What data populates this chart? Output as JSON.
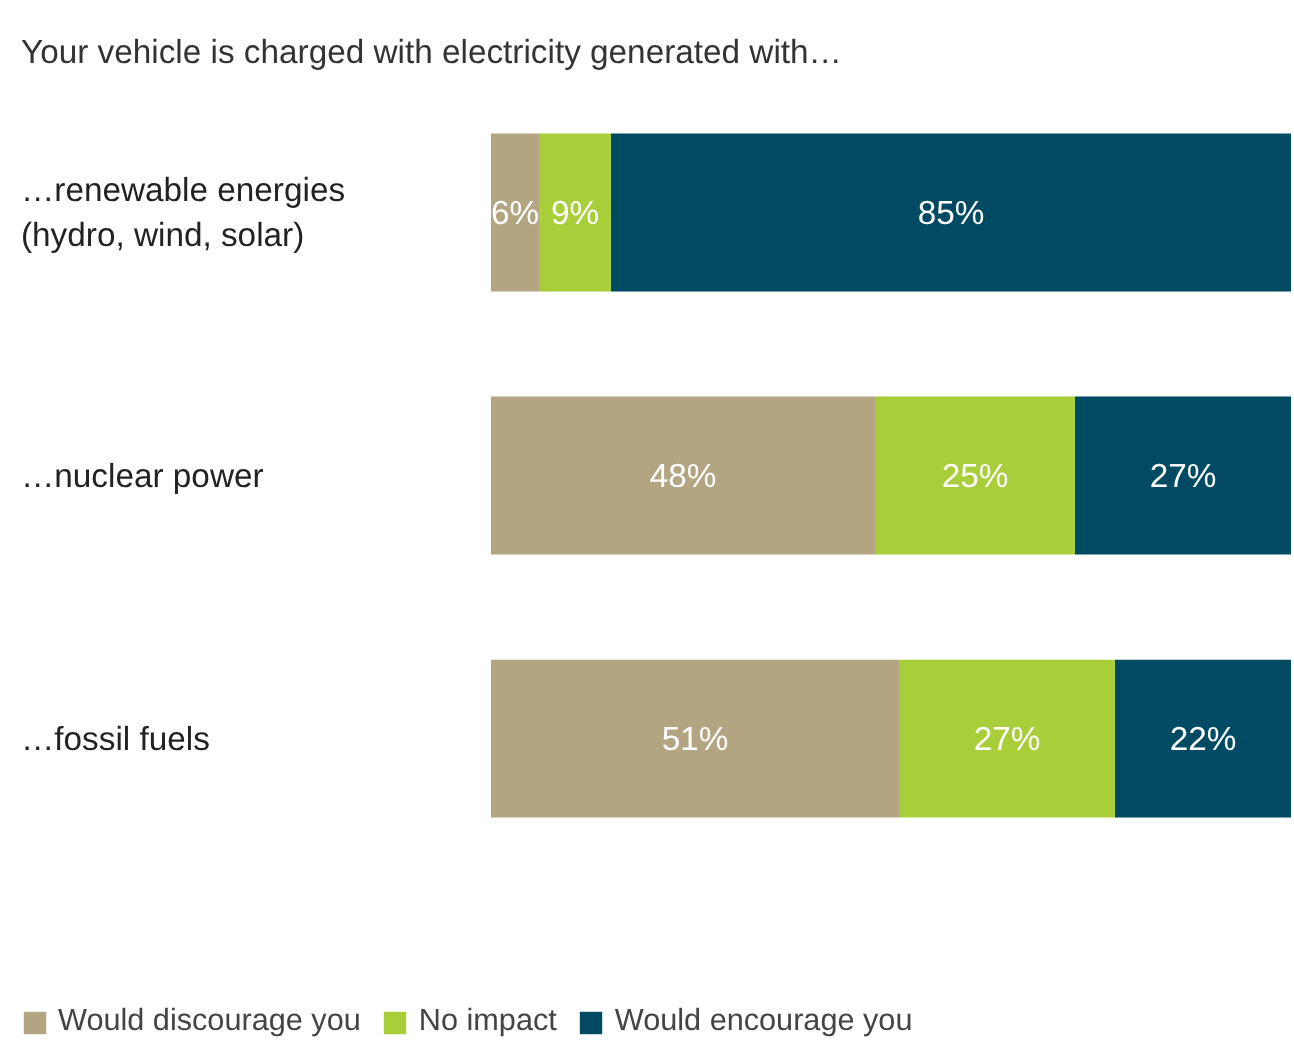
{
  "chart_data": {
    "type": "bar",
    "orientation": "horizontal",
    "stacked": true,
    "title": "Your vehicle is charged with electricity generated with…",
    "categories": [
      "…renewable energies\n(hydro, wind, solar)",
      "…nuclear power",
      "…fossil fuels"
    ],
    "series": [
      {
        "name": "Would discourage you",
        "color": "#b3a582",
        "values": [
          6,
          48,
          51
        ],
        "value_labels": [
          "6%",
          "48%",
          "51%"
        ]
      },
      {
        "name": "No impact",
        "color": "#a8cf3a",
        "values": [
          9,
          25,
          27
        ],
        "value_labels": [
          "9%",
          "25%",
          "27%"
        ]
      },
      {
        "name": "Would encourage you",
        "color": "#004b63",
        "values": [
          85,
          27,
          22
        ],
        "value_labels": [
          "85%",
          "27%",
          "22%"
        ]
      }
    ],
    "legend": "bottom left"
  }
}
